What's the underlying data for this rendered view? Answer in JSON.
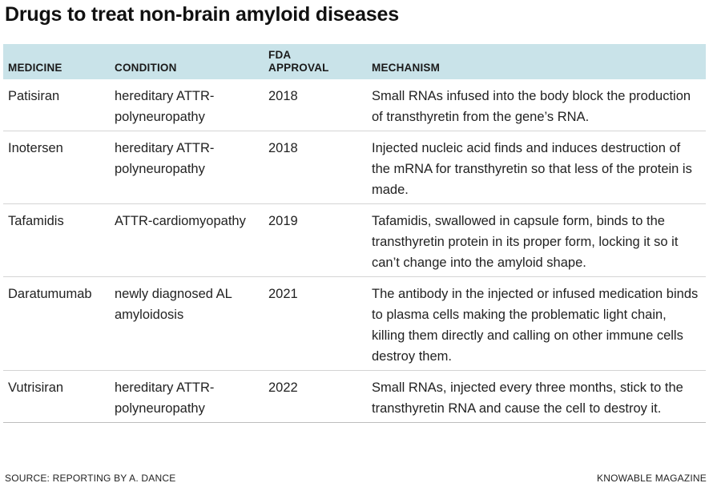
{
  "title": "Drugs to treat non-brain amyloid diseases",
  "columns": [
    "MEDICINE",
    "CONDITION",
    "FDA\nAPPROVAL",
    "MECHANISM"
  ],
  "rows": [
    {
      "medicine": "Patisiran",
      "condition": "hereditary ATTR-polyneuropathy",
      "approval": "2018",
      "mechanism": "Small RNAs infused into the body block the production of transthyretin from the gene’s RNA."
    },
    {
      "medicine": "Inotersen",
      "condition": "hereditary ATTR-polyneuropathy",
      "approval": "2018",
      "mechanism": "Injected nucleic acid finds and induces destruction of the mRNA for transthyretin so that less of the protein is made."
    },
    {
      "medicine": "Tafamidis",
      "condition": "ATTR-cardiomyopathy",
      "approval": "2019",
      "mechanism": "Tafamidis, swallowed in capsule form, binds to the transthyretin protein in its proper form, locking it so it can’t change into the amyloid shape."
    },
    {
      "medicine": "Daratumumab",
      "condition": "newly diagnosed AL amyloidosis",
      "approval": "2021",
      "mechanism": "The antibody in the injected or infused medication binds to plasma cells making the problematic light chain, killing them directly and calling on other immune cells destroy them."
    },
    {
      "medicine": "Vutrisiran",
      "condition": "hereditary ATTR-polyneuropathy",
      "approval": "2022",
      "mechanism": "Small RNAs, injected every three months, stick to the transthyretin RNA and cause the cell to destroy it."
    }
  ],
  "footer": {
    "source": "SOURCE: REPORTING BY A. DANCE",
    "credit": "KNOWABLE MAGAZINE"
  },
  "colors": {
    "header_bg": "#c9e3e9"
  }
}
